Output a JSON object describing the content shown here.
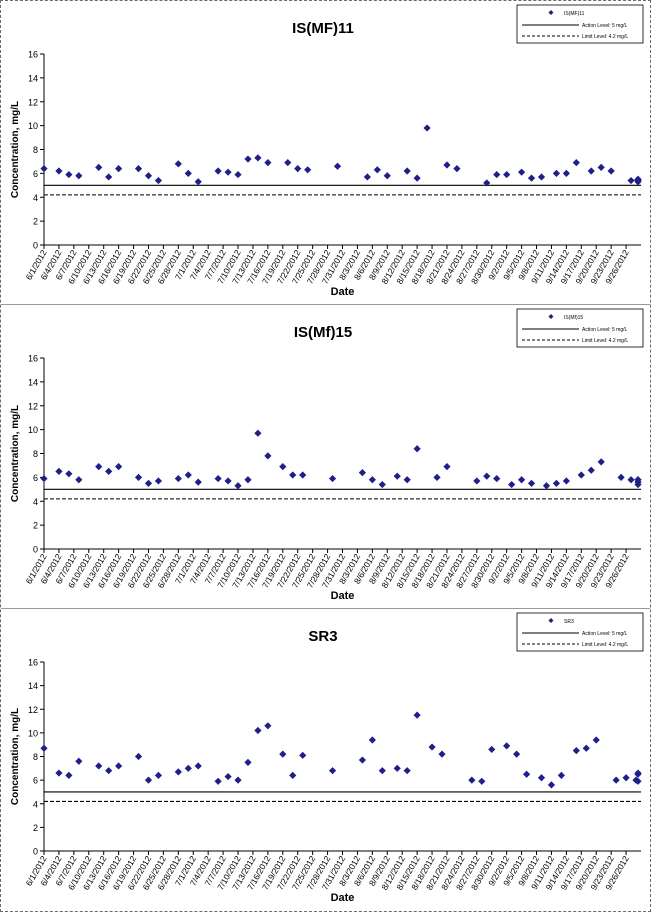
{
  "colors": {
    "marker": "#1f1f8a",
    "axis": "#000000",
    "text": "#000000"
  },
  "chart_data": [
    {
      "type": "scatter",
      "title": "IS(MF)11",
      "xlabel": "Date",
      "ylabel": "Concentration, mg/L",
      "ylim": [
        0,
        16
      ],
      "yticks": [
        0,
        2,
        4,
        6,
        8,
        10,
        12,
        14,
        16
      ],
      "xlim": [
        "6/1/2012",
        "9/29/2012"
      ],
      "xtick_labels": [
        "6/1/2012",
        "6/4/2012",
        "6/7/2012",
        "6/10/2012",
        "6/13/2012",
        "6/16/2012",
        "6/19/2012",
        "6/22/2012",
        "6/25/2012",
        "6/28/2012",
        "7/1/2012",
        "7/4/2012",
        "7/7/2012",
        "7/10/2012",
        "7/13/2012",
        "7/16/2012",
        "7/19/2012",
        "7/22/2012",
        "7/25/2012",
        "7/28/2012",
        "7/31/2012",
        "8/3/2012",
        "8/6/2012",
        "8/9/2012",
        "8/12/2012",
        "8/15/2012",
        "8/18/2012",
        "8/21/2012",
        "8/24/2012",
        "8/27/2012",
        "8/30/2012",
        "9/2/2012",
        "9/5/2012",
        "9/8/2012",
        "9/11/2012",
        "9/14/2012",
        "9/17/2012",
        "9/20/2012",
        "9/23/2012",
        "9/26/2012"
      ],
      "legend": {
        "placement": "top-right",
        "series_label": "IS(MF)11",
        "action_label": "Action Level: 5 mg/L",
        "limit_label": "Limit Level: 4.2 mg/L"
      },
      "grid": false,
      "lines": [
        {
          "name": "Action Level: 5 mg/L",
          "y": 5.0,
          "style": "solid"
        },
        {
          "name": "Limit Level: 4.2 mg/L",
          "y": 4.2,
          "style": "dashed"
        }
      ],
      "series": [
        {
          "name": "IS(MF)11",
          "points": [
            [
              "6/1/2012",
              6.4
            ],
            [
              "6/4/2012",
              6.2
            ],
            [
              "6/6/2012",
              5.9
            ],
            [
              "6/8/2012",
              5.8
            ],
            [
              "6/12/2012",
              6.5
            ],
            [
              "6/14/2012",
              5.7
            ],
            [
              "6/16/2012",
              6.4
            ],
            [
              "6/20/2012",
              6.4
            ],
            [
              "6/22/2012",
              5.8
            ],
            [
              "6/24/2012",
              5.4
            ],
            [
              "6/28/2012",
              6.8
            ],
            [
              "6/30/2012",
              6.0
            ],
            [
              "7/2/2012",
              5.3
            ],
            [
              "7/6/2012",
              6.2
            ],
            [
              "7/8/2012",
              6.1
            ],
            [
              "7/10/2012",
              5.9
            ],
            [
              "7/12/2012",
              7.2
            ],
            [
              "7/14/2012",
              7.3
            ],
            [
              "7/16/2012",
              6.9
            ],
            [
              "7/20/2012",
              6.9
            ],
            [
              "7/22/2012",
              6.4
            ],
            [
              "7/24/2012",
              6.3
            ],
            [
              "7/30/2012",
              6.6
            ],
            [
              "8/5/2012",
              5.7
            ],
            [
              "8/7/2012",
              6.3
            ],
            [
              "8/9/2012",
              5.8
            ],
            [
              "8/13/2012",
              6.2
            ],
            [
              "8/15/2012",
              5.6
            ],
            [
              "8/17/2012",
              9.8
            ],
            [
              "8/21/2012",
              6.7
            ],
            [
              "8/23/2012",
              6.4
            ],
            [
              "8/29/2012",
              5.2
            ],
            [
              "8/31/2012",
              5.9
            ],
            [
              "9/2/2012",
              5.9
            ],
            [
              "9/5/2012",
              6.1
            ],
            [
              "9/7/2012",
              5.6
            ],
            [
              "9/9/2012",
              5.7
            ],
            [
              "9/12/2012",
              6.0
            ],
            [
              "9/14/2012",
              6.0
            ],
            [
              "9/16/2012",
              6.9
            ],
            [
              "9/19/2012",
              6.2
            ],
            [
              "9/21/2012",
              6.5
            ],
            [
              "9/23/2012",
              6.2
            ],
            [
              "9/27/2012",
              5.4
            ],
            [
              "9/29/2012",
              5.3
            ],
            [
              "10/1/2012",
              5.4
            ],
            [
              "10/4/2012",
              5.5
            ],
            [
              "10/6/2012",
              5.5
            ],
            [
              "10/8/2012",
              5.5
            ]
          ]
        }
      ]
    },
    {
      "type": "scatter",
      "title": "IS(Mf)15",
      "xlabel": "Date",
      "ylabel": "Concentration, mg/L",
      "ylim": [
        0,
        16
      ],
      "yticks": [
        0,
        2,
        4,
        6,
        8,
        10,
        12,
        14,
        16
      ],
      "xlim": [
        "6/1/2012",
        "9/29/2012"
      ],
      "xtick_labels": [
        "6/1/2012",
        "6/4/2012",
        "6/7/2012",
        "6/10/2012",
        "6/13/2012",
        "6/16/2012",
        "6/19/2012",
        "6/22/2012",
        "6/25/2012",
        "6/28/2012",
        "7/1/2012",
        "7/4/2012",
        "7/7/2012",
        "7/10/2012",
        "7/13/2012",
        "7/16/2012",
        "7/19/2012",
        "7/22/2012",
        "7/25/2012",
        "7/28/2012",
        "7/31/2012",
        "8/3/2012",
        "8/6/2012",
        "8/9/2012",
        "8/12/2012",
        "8/15/2012",
        "8/18/2012",
        "8/21/2012",
        "8/24/2012",
        "8/27/2012",
        "8/30/2012",
        "9/2/2012",
        "9/5/2012",
        "9/8/2012",
        "9/11/2012",
        "9/14/2012",
        "9/17/2012",
        "9/20/2012",
        "9/23/2012",
        "9/26/2012"
      ],
      "legend": {
        "placement": "top-right",
        "series_label": "IS(Mf)15",
        "action_label": "Action Level: 5 mg/L",
        "limit_label": "Limit Level: 4.2 mg/L"
      },
      "grid": false,
      "lines": [
        {
          "name": "Action Level: 5 mg/L",
          "y": 5.0,
          "style": "solid"
        },
        {
          "name": "Limit Level: 4.2 mg/L",
          "y": 4.2,
          "style": "dashed"
        }
      ],
      "series": [
        {
          "name": "IS(Mf)15",
          "points": [
            [
              "6/1/2012",
              5.9
            ],
            [
              "6/4/2012",
              6.5
            ],
            [
              "6/6/2012",
              6.3
            ],
            [
              "6/8/2012",
              5.8
            ],
            [
              "6/12/2012",
              6.9
            ],
            [
              "6/14/2012",
              6.5
            ],
            [
              "6/16/2012",
              6.9
            ],
            [
              "6/20/2012",
              6.0
            ],
            [
              "6/22/2012",
              5.5
            ],
            [
              "6/24/2012",
              5.7
            ],
            [
              "6/28/2012",
              5.9
            ],
            [
              "6/30/2012",
              6.2
            ],
            [
              "7/2/2012",
              5.6
            ],
            [
              "7/6/2012",
              5.9
            ],
            [
              "7/8/2012",
              5.7
            ],
            [
              "7/10/2012",
              5.3
            ],
            [
              "7/12/2012",
              5.8
            ],
            [
              "7/14/2012",
              9.7
            ],
            [
              "7/16/2012",
              7.8
            ],
            [
              "7/19/2012",
              6.9
            ],
            [
              "7/21/2012",
              6.2
            ],
            [
              "7/23/2012",
              6.2
            ],
            [
              "7/29/2012",
              5.9
            ],
            [
              "8/4/2012",
              6.4
            ],
            [
              "8/6/2012",
              5.8
            ],
            [
              "8/8/2012",
              5.4
            ],
            [
              "8/11/2012",
              6.1
            ],
            [
              "8/13/2012",
              5.8
            ],
            [
              "8/15/2012",
              8.4
            ],
            [
              "8/19/2012",
              6.0
            ],
            [
              "8/21/2012",
              6.9
            ],
            [
              "8/27/2012",
              5.7
            ],
            [
              "8/29/2012",
              6.1
            ],
            [
              "8/31/2012",
              5.9
            ],
            [
              "9/3/2012",
              5.4
            ],
            [
              "9/5/2012",
              5.8
            ],
            [
              "9/7/2012",
              5.5
            ],
            [
              "9/10/2012",
              5.3
            ],
            [
              "9/12/2012",
              5.5
            ],
            [
              "9/14/2012",
              5.7
            ],
            [
              "9/17/2012",
              6.2
            ],
            [
              "9/19/2012",
              6.6
            ],
            [
              "9/21/2012",
              7.3
            ],
            [
              "9/25/2012",
              6.0
            ],
            [
              "9/27/2012",
              5.8
            ],
            [
              "9/29/2012",
              5.8
            ],
            [
              "10/2/2012",
              5.4
            ],
            [
              "10/4/2012",
              5.6
            ],
            [
              "10/6/2012",
              5.8
            ]
          ]
        }
      ]
    },
    {
      "type": "scatter",
      "title": "SR3",
      "xlabel": "Date",
      "ylabel": "Concentration, mg/L",
      "ylim": [
        0,
        16
      ],
      "yticks": [
        0,
        2,
        4,
        6,
        8,
        10,
        12,
        14,
        16
      ],
      "xlim": [
        "6/1/2012",
        "9/29/2012"
      ],
      "xtick_labels": [
        "6/1/2012",
        "6/4/2012",
        "6/7/2012",
        "6/10/2012",
        "6/13/2012",
        "6/16/2012",
        "6/19/2012",
        "6/22/2012",
        "6/25/2012",
        "6/28/2012",
        "7/1/2012",
        "7/4/2012",
        "7/7/2012",
        "7/10/2012",
        "7/13/2012",
        "7/16/2012",
        "7/19/2012",
        "7/22/2012",
        "7/25/2012",
        "7/28/2012",
        "7/31/2012",
        "8/3/2012",
        "8/6/2012",
        "8/9/2012",
        "8/12/2012",
        "8/15/2012",
        "8/18/2012",
        "8/21/2012",
        "8/24/2012",
        "8/27/2012",
        "8/30/2012",
        "9/2/2012",
        "9/5/2012",
        "9/8/2012",
        "9/11/2012",
        "9/14/2012",
        "9/17/2012",
        "9/20/2012",
        "9/23/2012",
        "9/26/2012"
      ],
      "legend": {
        "placement": "top-right",
        "series_label": "SR3",
        "action_label": "Action Level: 5 mg/L",
        "limit_label": "Limit Level: 4.2 mg/L"
      },
      "grid": false,
      "lines": [
        {
          "name": "Action Level: 5 mg/L",
          "y": 5.0,
          "style": "solid"
        },
        {
          "name": "Limit Level: 4.2 mg/L",
          "y": 4.2,
          "style": "dashed"
        }
      ],
      "series": [
        {
          "name": "SR3",
          "points": [
            [
              "6/1/2012",
              8.7
            ],
            [
              "6/4/2012",
              6.6
            ],
            [
              "6/6/2012",
              6.4
            ],
            [
              "6/8/2012",
              7.6
            ],
            [
              "6/12/2012",
              7.2
            ],
            [
              "6/14/2012",
              6.8
            ],
            [
              "6/16/2012",
              7.2
            ],
            [
              "6/20/2012",
              8.0
            ],
            [
              "6/22/2012",
              6.0
            ],
            [
              "6/24/2012",
              6.4
            ],
            [
              "6/28/2012",
              6.7
            ],
            [
              "6/30/2012",
              7.0
            ],
            [
              "7/2/2012",
              7.2
            ],
            [
              "7/6/2012",
              5.9
            ],
            [
              "7/8/2012",
              6.3
            ],
            [
              "7/10/2012",
              6.0
            ],
            [
              "7/12/2012",
              7.5
            ],
            [
              "7/14/2012",
              10.2
            ],
            [
              "7/16/2012",
              10.6
            ],
            [
              "7/19/2012",
              8.2
            ],
            [
              "7/21/2012",
              6.4
            ],
            [
              "7/23/2012",
              8.1
            ],
            [
              "7/29/2012",
              6.8
            ],
            [
              "8/4/2012",
              7.7
            ],
            [
              "8/6/2012",
              9.4
            ],
            [
              "8/8/2012",
              6.8
            ],
            [
              "8/11/2012",
              7.0
            ],
            [
              "8/13/2012",
              6.8
            ],
            [
              "8/15/2012",
              11.5
            ],
            [
              "8/18/2012",
              8.8
            ],
            [
              "8/20/2012",
              8.2
            ],
            [
              "8/26/2012",
              6.0
            ],
            [
              "8/28/2012",
              5.9
            ],
            [
              "8/30/2012",
              8.6
            ],
            [
              "9/2/2012",
              8.9
            ],
            [
              "9/4/2012",
              8.2
            ],
            [
              "9/6/2012",
              6.5
            ],
            [
              "9/9/2012",
              6.2
            ],
            [
              "9/11/2012",
              5.6
            ],
            [
              "9/13/2012",
              6.4
            ],
            [
              "9/16/2012",
              8.5
            ],
            [
              "9/18/2012",
              8.7
            ],
            [
              "9/20/2012",
              9.4
            ],
            [
              "9/24/2012",
              6.0
            ],
            [
              "9/26/2012",
              6.2
            ],
            [
              "9/28/2012",
              6.0
            ],
            [
              "10/1/2012",
              5.9
            ],
            [
              "10/3/2012",
              6.5
            ],
            [
              "10/5/2012",
              6.6
            ]
          ]
        }
      ]
    }
  ]
}
